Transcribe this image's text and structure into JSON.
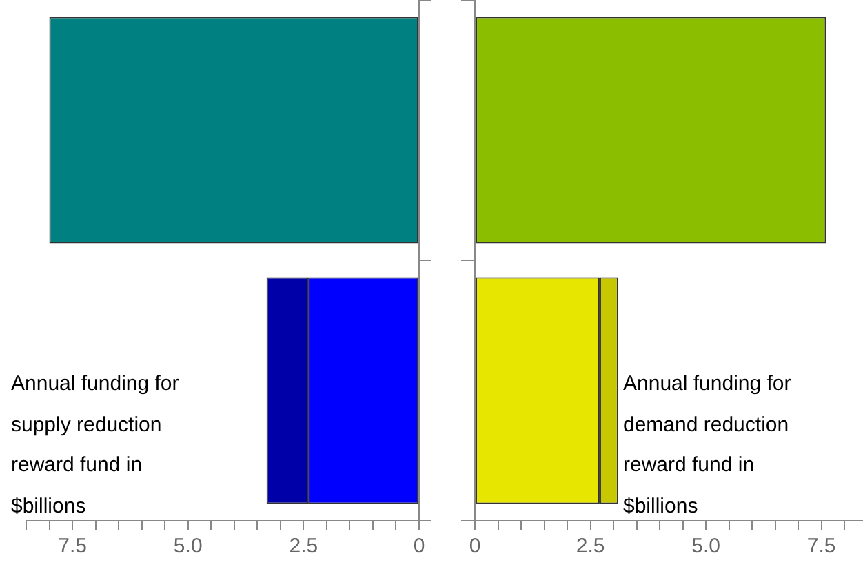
{
  "chart_data": [
    {
      "type": "bar",
      "orientation": "horizontal",
      "stacked": true,
      "categories": [
        null,
        null
      ],
      "series": [
        {
          "colors": [
            "#008080",
            "#0000ff"
          ],
          "values": [
            8.0,
            2.4
          ]
        },
        {
          "color": "#0000a8",
          "values": [
            null,
            0.9
          ]
        }
      ],
      "xlim": [
        8.5,
        0
      ],
      "xticks": [
        {
          "value": 8.5,
          "label": null
        },
        {
          "value": 8,
          "label": null
        },
        7.5,
        {
          "value": 7,
          "label": null
        },
        {
          "value": 6.5,
          "label": null
        },
        {
          "value": 6,
          "label": null
        },
        {
          "value": 5.5,
          "label": null
        },
        {
          "value": 5,
          "label": "5.0"
        },
        {
          "value": 4.5,
          "label": null
        },
        {
          "value": 4,
          "label": null
        },
        {
          "value": 3.5,
          "label": null
        },
        {
          "value": 3,
          "label": null
        },
        2.5,
        {
          "value": 2,
          "label": null
        },
        {
          "value": 1.5,
          "label": null
        },
        {
          "value": 1,
          "label": null
        },
        {
          "value": 0.5,
          "label": null
        },
        0
      ],
      "grid": false,
      "legend": false,
      "annotations": [
        "Annual funding for supply reduction reward fund in $billions"
      ]
    },
    {
      "type": "bar",
      "orientation": "horizontal",
      "stacked": true,
      "categories": [
        null,
        null
      ],
      "series": [
        {
          "colors": [
            "#8cbe00",
            "#e6e600"
          ],
          "values": [
            7.6,
            2.7
          ]
        },
        {
          "color": "#c8c800",
          "values": [
            null,
            0.4
          ]
        }
      ],
      "xlim": [
        0,
        8.4
      ],
      "xticks": [
        0,
        {
          "value": 0.5,
          "label": null
        },
        {
          "value": 1,
          "label": null
        },
        {
          "value": 1.5,
          "label": null
        },
        {
          "value": 2,
          "label": null
        },
        2.5,
        {
          "value": 3,
          "label": null
        },
        {
          "value": 3.5,
          "label": null
        },
        {
          "value": 4,
          "label": null
        },
        {
          "value": 4.5,
          "label": null
        },
        {
          "value": 5,
          "label": "5.0"
        },
        {
          "value": 5.5,
          "label": null
        },
        {
          "value": 6,
          "label": null
        },
        {
          "value": 6.5,
          "label": null
        },
        {
          "value": 7,
          "label": null
        },
        7.5,
        {
          "value": 8,
          "label": null
        }
      ],
      "grid": false,
      "legend": false,
      "annotations": [
        "Annual funding for demand reduction reward fund in $billions"
      ]
    }
  ]
}
